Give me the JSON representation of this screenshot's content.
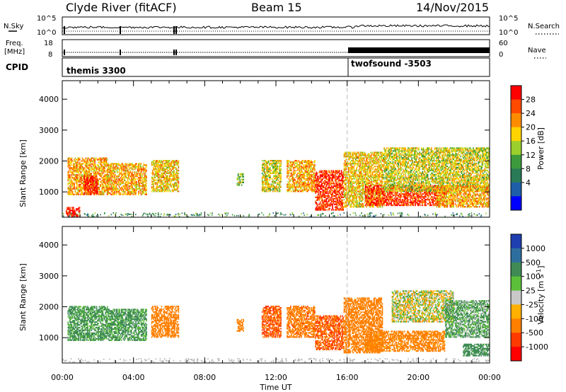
{
  "header": {
    "station": "Clyde River (fitACF)",
    "beam": "Beam 15",
    "date": "14/Nov/2015"
  },
  "top_panels": {
    "nsky_label": "N.Sky",
    "nsky_ticks": [
      "10^5",
      "10^0"
    ],
    "nsearch_label": "N.Search",
    "nsearch_ticks": [
      "10^5",
      "10^0"
    ],
    "freq_label_1": "Freq.",
    "freq_label_2": "[MHz]",
    "freq_ticks": [
      "18",
      "8"
    ],
    "nave_label": "Nave",
    "nave_ticks": [
      "60",
      "0"
    ],
    "cpid_label": "CPID",
    "cpid_programs": [
      {
        "name": "themis 3300",
        "start_hour": 0
      },
      {
        "name": "twofsound -3503",
        "start_hour": 16
      }
    ]
  },
  "colorbars": {
    "power": {
      "label": "Power [dB]",
      "ticks": [
        "28",
        "24",
        "20",
        "16",
        "12",
        "8",
        "4"
      ],
      "colors": [
        "#ff0000",
        "#ff4a00",
        "#ff8c00",
        "#ffd400",
        "#9bcf2c",
        "#3c9a3c",
        "#2a7a58",
        "#1e5ea8",
        "#0000ff"
      ]
    },
    "velocity": {
      "label": "Velocity [m s",
      "label_sup": "-1",
      "label_end": "]",
      "ticks": [
        "1000",
        "500",
        "100",
        "25",
        "-25",
        "-100",
        "-500",
        "-1000"
      ],
      "colors": [
        "#1e3fb0",
        "#2e6e9e",
        "#3f8a55",
        "#5cbf3a",
        "#c8c8c8",
        "#ffb000",
        "#ff8000",
        "#ff3a00",
        "#ff0000"
      ]
    }
  },
  "chart_data": [
    {
      "type": "heatmap",
      "title": "",
      "xlabel": "Time UT",
      "ylabel": "Slant Range [km]",
      "x_ticks": [
        "00:00",
        "04:00",
        "08:00",
        "12:00",
        "16:00",
        "20:00",
        "00:00"
      ],
      "y_ticks": [
        "1000",
        "2000",
        "3000",
        "4000"
      ],
      "xlim_hours": [
        0,
        24
      ],
      "ylim": [
        180,
        4600
      ],
      "colorbar": "Power [dB]",
      "color_range": [
        0,
        32
      ],
      "marker_hour": 16,
      "echo_regions": [
        {
          "t": [
            0.3,
            2.5
          ],
          "r": [
            900,
            2100
          ],
          "value": 22
        },
        {
          "t": [
            0.2,
            1.0
          ],
          "r": [
            200,
            500
          ],
          "value": 30
        },
        {
          "t": [
            1.2,
            2.0
          ],
          "r": [
            900,
            1500
          ],
          "value": 29
        },
        {
          "t": [
            2.5,
            4.7
          ],
          "r": [
            900,
            1900
          ],
          "value": 22
        },
        {
          "t": [
            5.0,
            6.5
          ],
          "r": [
            1000,
            2000
          ],
          "value": 20
        },
        {
          "t": [
            9.8,
            10.2
          ],
          "r": [
            1200,
            1600
          ],
          "value": 16
        },
        {
          "t": [
            11.2,
            12.3
          ],
          "r": [
            1000,
            2000
          ],
          "value": 18
        },
        {
          "t": [
            12.6,
            14.2
          ],
          "r": [
            1000,
            2000
          ],
          "value": 22
        },
        {
          "t": [
            14.2,
            15.8
          ],
          "r": [
            400,
            1700
          ],
          "value": 28
        },
        {
          "t": [
            15.8,
            18.0
          ],
          "r": [
            500,
            2300
          ],
          "value": 20
        },
        {
          "t": [
            17.0,
            21.5
          ],
          "r": [
            550,
            1200
          ],
          "value": 28
        },
        {
          "t": [
            18.0,
            24.0
          ],
          "r": [
            1000,
            2400
          ],
          "value": 18
        },
        {
          "t": [
            21.0,
            24.0
          ],
          "r": [
            500,
            1200
          ],
          "value": 22
        }
      ]
    },
    {
      "type": "heatmap",
      "title": "",
      "xlabel": "Time UT",
      "ylabel": "Slant Range [km]",
      "x_ticks": [
        "00:00",
        "04:00",
        "08:00",
        "12:00",
        "16:00",
        "20:00",
        "00:00"
      ],
      "y_ticks": [
        "1000",
        "2000",
        "3000",
        "4000"
      ],
      "xlim_hours": [
        0,
        24
      ],
      "ylim": [
        180,
        4600
      ],
      "colorbar": "Velocity [m s-1]",
      "color_range": [
        -1000,
        1000
      ],
      "marker_hour": 16,
      "echo_regions": [
        {
          "t": [
            0.3,
            2.5
          ],
          "r": [
            900,
            2000
          ],
          "value": 150
        },
        {
          "t": [
            2.5,
            4.7
          ],
          "r": [
            900,
            1900
          ],
          "value": 150
        },
        {
          "t": [
            5.0,
            6.5
          ],
          "r": [
            1000,
            2000
          ],
          "value": -300
        },
        {
          "t": [
            9.8,
            10.2
          ],
          "r": [
            1200,
            1600
          ],
          "value": -300
        },
        {
          "t": [
            11.2,
            12.3
          ],
          "r": [
            1000,
            2000
          ],
          "value": -500
        },
        {
          "t": [
            12.6,
            14.2
          ],
          "r": [
            1000,
            2000
          ],
          "value": -400
        },
        {
          "t": [
            14.2,
            15.8
          ],
          "r": [
            600,
            1700
          ],
          "value": -500
        },
        {
          "t": [
            15.8,
            18.0
          ],
          "r": [
            500,
            2300
          ],
          "value": -300
        },
        {
          "t": [
            17.0,
            21.5
          ],
          "r": [
            550,
            1200
          ],
          "value": -200
        },
        {
          "t": [
            18.5,
            22.0
          ],
          "r": [
            1500,
            2500
          ],
          "value": 0
        },
        {
          "t": [
            21.5,
            24.0
          ],
          "r": [
            1000,
            2200
          ],
          "value": 100
        },
        {
          "t": [
            22.5,
            24.0
          ],
          "r": [
            400,
            800
          ],
          "value": 200
        }
      ]
    }
  ]
}
